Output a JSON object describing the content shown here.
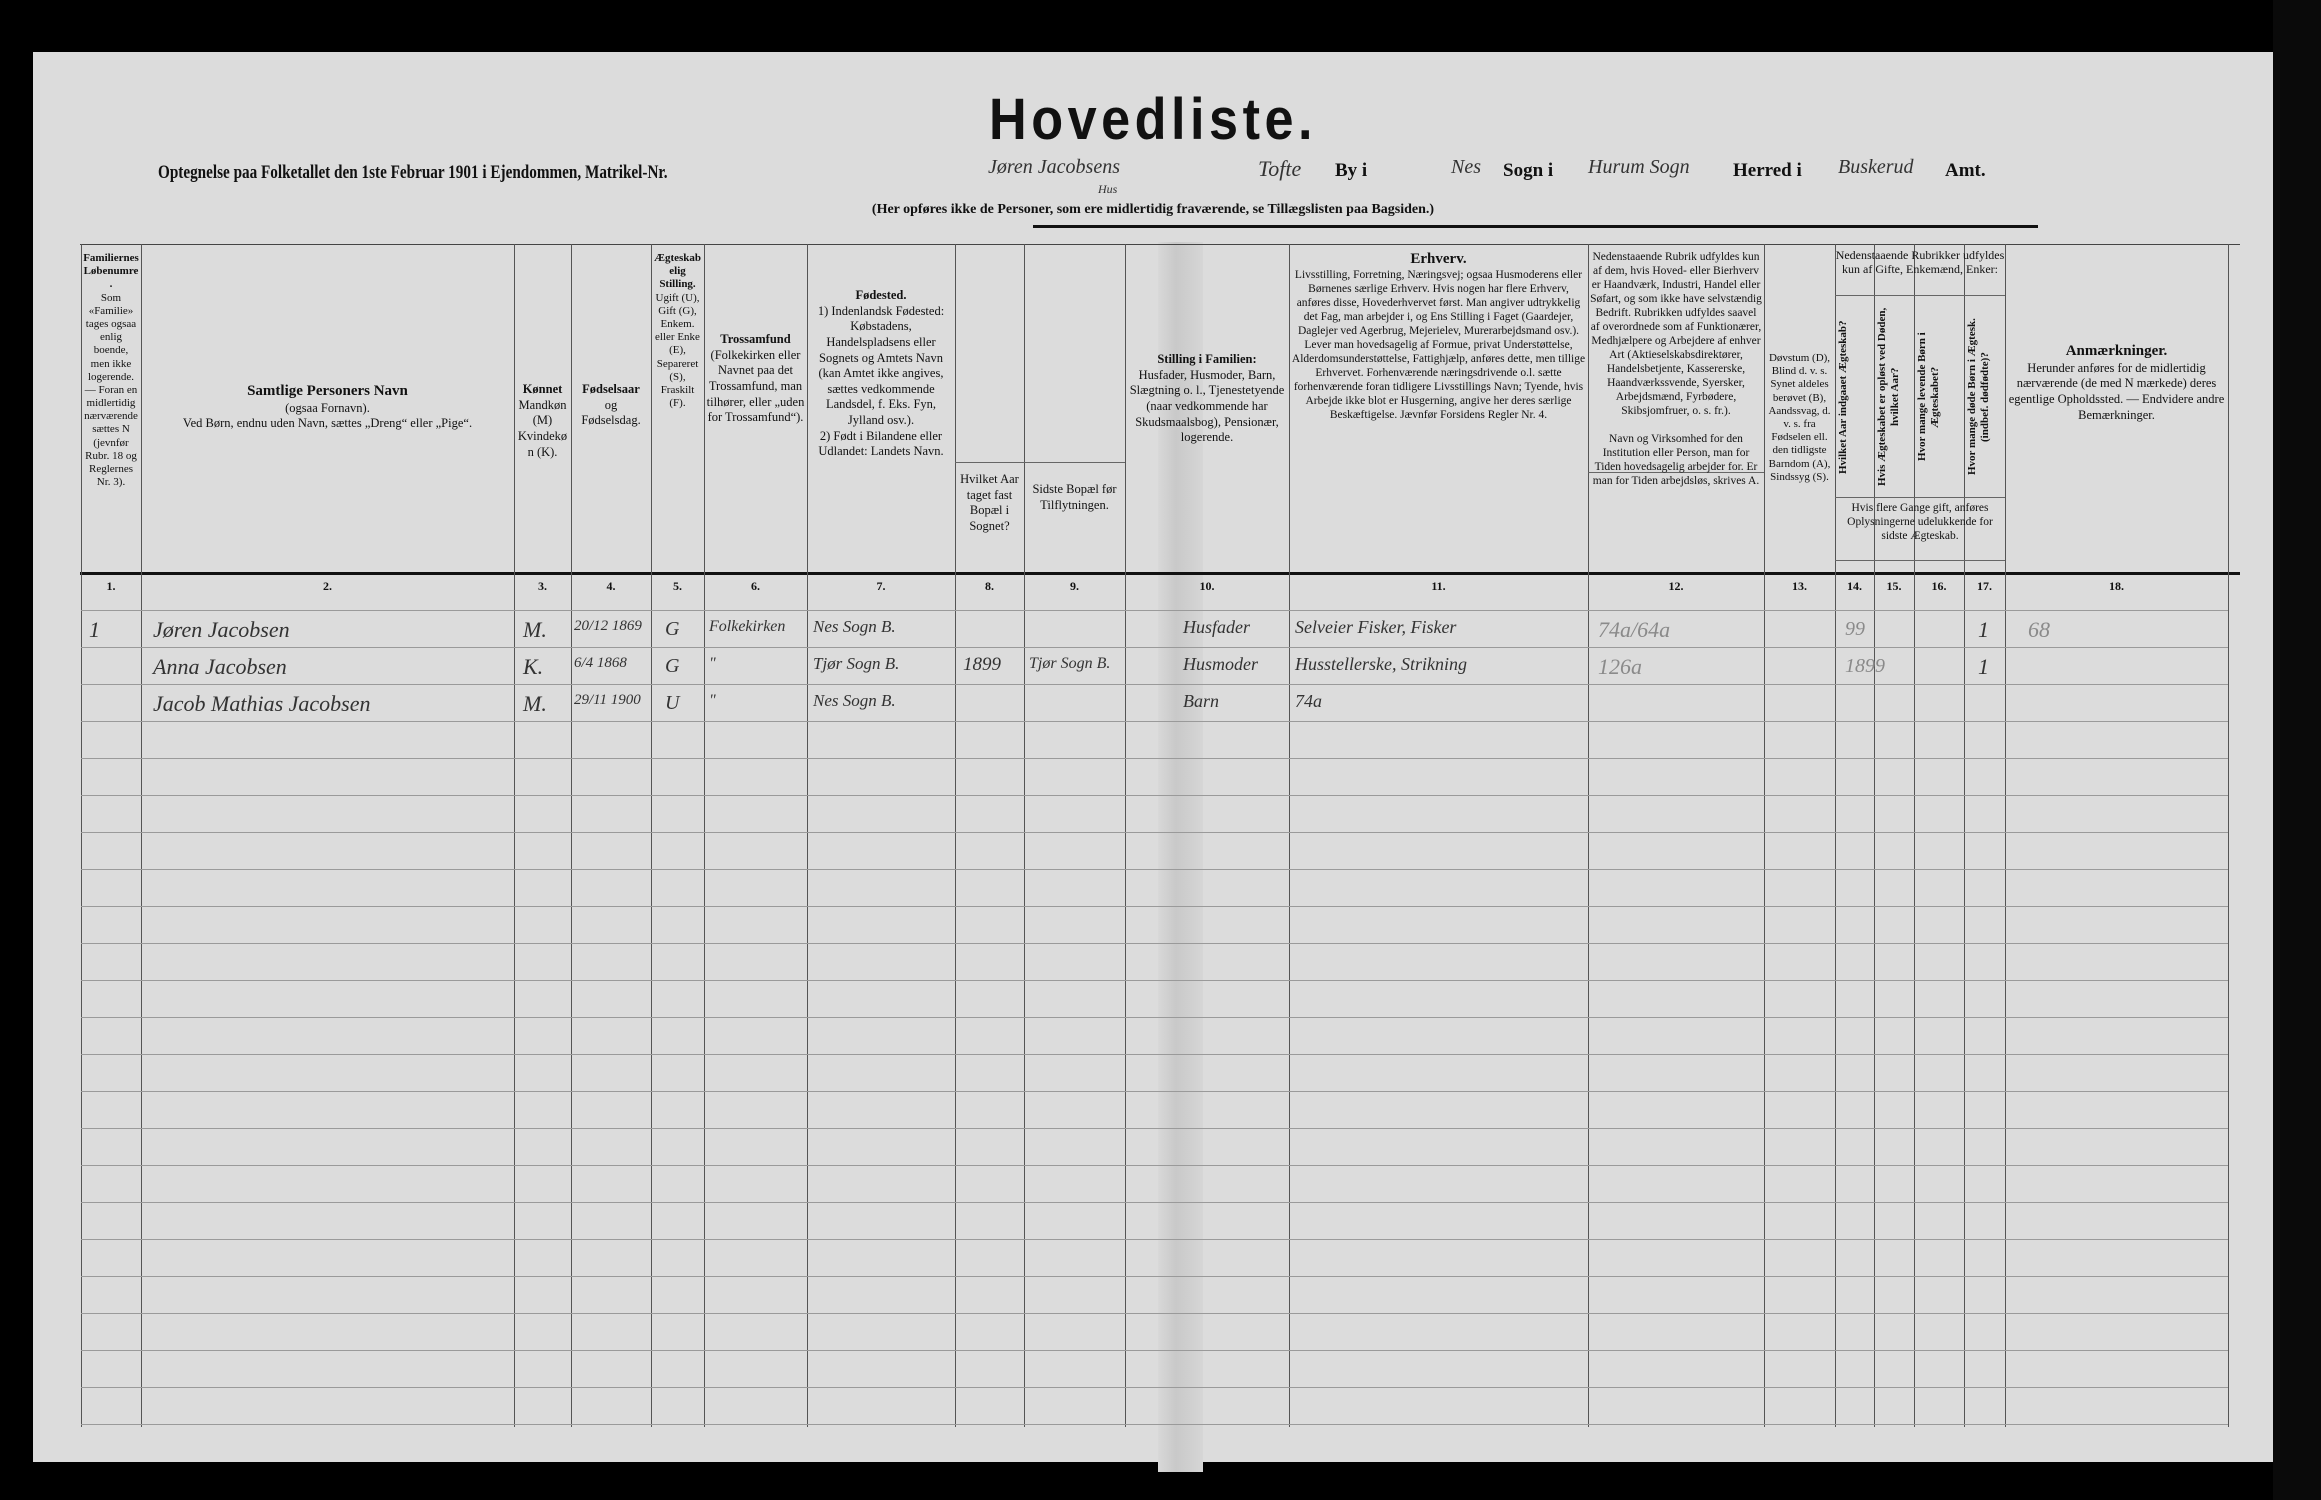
{
  "title": "Hovedliste.",
  "subtitle": {
    "prefix": "Optegnelse paa Folketallet den 1ste Februar 1901 i Ejendommen, Matrikel-Nr.",
    "matrikel_handwritten": "Jøren Jacobsens",
    "matrikel_sub_handwritten": "Hus",
    "by_handwritten": "Tofte",
    "by_label": "By i",
    "sogn_handwritten": "Nes",
    "sogn_label": "Sogn i",
    "herred_handwritten": "Hurum Sogn",
    "herred_label": "Herred i",
    "amt_handwritten": "Buskerud",
    "amt_label": "Amt."
  },
  "note": "(Her opføres ikke de Personer, som ere midlertidig fraværende, se Tillægslisten paa Bagsiden.)",
  "columns": [
    {
      "num": "1.",
      "header_bold": "Familiernes Løbenumre.",
      "header": "Som «Familie» tages ogsaa enlig boende, men ikke logerende. — Foran en midlertidig nærværende sættes N (jevnfør Rubr. 18 og Reglernes Nr. 3)."
    },
    {
      "num": "2.",
      "header_bold": "Samtlige Personers Navn",
      "header": "(ogsaa Fornavn).\nVed Børn, endnu uden Navn, sættes „Dreng“ eller „Pige“."
    },
    {
      "num": "3.",
      "header_bold": "Kønnet",
      "header": "Mandkøn (M)\nKvindekøn (K)."
    },
    {
      "num": "4.",
      "header_bold": "Fødselsaar",
      "header": "og\nFødselsdag."
    },
    {
      "num": "5.",
      "header_bold": "Ægteskabelig Stilling.",
      "header": "Ugift (U), Gift (G), Enkem. eller Enke (E), Separeret (S), Fraskilt (F)."
    },
    {
      "num": "6.",
      "header_bold": "Trossamfund",
      "header": "(Folkekirken eller Navnet paa det Trossamfund, man tilhører, eller „uden for Trossamfund“)."
    },
    {
      "num": "7.",
      "header_bold": "Fødested.",
      "header": "1) Indenlandsk Fødested: Købstadens, Handelspladsens eller Sognets og Amtets Navn (kan Amtet ikke angives, sættes vedkommende Landsdel, f. Eks. Fyn, Jylland osv.).\n2) Født i Bilandene eller Udlandet: Landets Navn."
    },
    {
      "num": "8.",
      "header_bold": "",
      "header": "Hvilket Aar taget fast Bopæl i Sognet?"
    },
    {
      "num": "9.",
      "header_bold": "",
      "header": "Sidste Bopæl før Tilflytningen."
    },
    {
      "num": "10.",
      "header_bold": "Stilling i Familien:",
      "header": "Husfader, Husmoder, Barn, Slægtning o. l., Tjenestetyende (naar vedkommende har Skudsmaalsbog), Pensionær, logerende."
    },
    {
      "num": "11.",
      "header_bold": "Erhverv.",
      "header": "Livsstilling, Forretning, Næringsvej; ogsaa Husmoderens eller Børnenes særlige Erhverv. Hvis nogen har flere Erhverv, anføres disse, Hovederhvervet først. Man angiver udtrykkelig det Fag, man arbejder i, og Ens Stilling i Faget (Gaardejer, Daglejer ved Agerbrug, Mejerielev, Murerarbejdsmand osv.). Lever man hovedsagelig af Formue, privat Understøttelse, Alderdomsunderstøttelse, Fattighjælp, anføres dette, men tillige Erhvervet. Forhenværende næringsdrivende o.l. sætte forhenværende foran tidligere Livsstillings Navn; Tyende, hvis Arbejde ikke blot er Husgerning, angive her deres særlige Beskæftigelse. Jævnfør Forsidens Regler Nr. 4."
    },
    {
      "num": "12.",
      "header_bold": "",
      "header": "Nedenstaaende Rubrik udfyldes kun af dem, hvis Hoved- eller Bierhverv er Haandværk, Industri, Handel eller Søfart, og som ikke have selvstændig Bedrift. Rubrikken udfyldes saavel af overordnede som af Funktionærer, Medhjælpere og Arbejdere af enhver Art (Aktieselskabsdirektører, Handelsbetjente, Kassererske, Haandværkssvende, Syersker, Arbejdsmænd, Fyrbødere, Skibsjomfruer, o. s. fr.).\n\nNavn og Virksomhed for den Institution eller Person, man for Tiden hovedsagelig arbejder for. Er man for Tiden arbejdsløs, skrives A."
    },
    {
      "num": "13.",
      "header_bold": "",
      "header": "Døvstum (D), Blind d. v. s. Synet aldeles berøvet (B), Aandssvag, d. v. s. fra Fødselen ell. den tidligste Barndom (A), Sindssyg (S)."
    },
    {
      "num": "14.",
      "header_bold": "",
      "header": "Hvilket Aar indgaaet Ægteskab?"
    },
    {
      "num": "15.",
      "header_bold": "",
      "header": "Hvis Ægteskabet er opløst ved Døden, hvilket Aar?"
    },
    {
      "num": "16.",
      "header_bold": "",
      "header": "Hvor mange levende Børn i Ægteskabet?"
    },
    {
      "num": "17.",
      "header_bold": "",
      "header": "Hvor mange døde Børn i Ægtesk. (indbef. dødfødte)?"
    },
    {
      "num": "18.",
      "header_bold": "Anmærkninger.",
      "header": "Herunder anføres for de midlertidig nærværende (de med N mærkede) deres egentlige Opholdssted. — Endvidere andre Bemærkninger."
    }
  ],
  "group_header_14_17": "Nedenstaaende Rubrikker udfyldes kun af Gifte, Enkemænd, Enker:",
  "group_note_14_17": "Hvis flere Gange gift, anføres Oplysningerne udelukkende for sidste Ægteskab.",
  "rows": [
    {
      "family": "1",
      "name": "Jøren Jacobsen",
      "sex": "M.",
      "birth": "20/12 1869",
      "marital": "G",
      "faith": "Folkekirken",
      "birthplace": "Nes Sogn B.",
      "moved_year": "",
      "last_residence": "",
      "family_role": "Husfader",
      "occupation": "Selveier  Fisker, Fisker",
      "code12": "74a/64a",
      "year_married": "99",
      "children_alive": "1",
      "remark": "68"
    },
    {
      "family": "",
      "name": "Anna Jacobsen",
      "sex": "K.",
      "birth": "6/4 1868",
      "marital": "G",
      "faith": "\"",
      "birthplace": "Tjør Sogn B.",
      "moved_year": "1899",
      "last_residence": "Tjør Sogn B.",
      "family_role": "Husmoder",
      "occupation": "Husstellerske, Strikning",
      "code12": "126a",
      "year_married": "1899",
      "children_alive": "1",
      "remark": ""
    },
    {
      "family": "",
      "name": "Jacob Mathias Jacobsen",
      "sex": "M.",
      "birth": "29/11 1900",
      "marital": "U",
      "faith": "\"",
      "birthplace": "Nes Sogn B.",
      "moved_year": "",
      "last_residence": "",
      "family_role": "Barn",
      "occupation": "74a",
      "code12": "",
      "year_married": "",
      "children_alive": "",
      "remark": ""
    }
  ]
}
